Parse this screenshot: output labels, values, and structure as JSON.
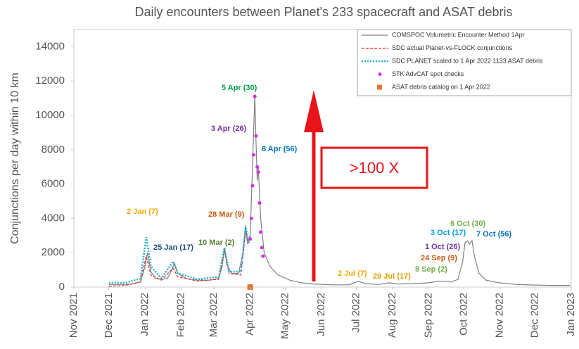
{
  "chart_data": {
    "type": "line",
    "title": "Daily encounters between Planet's 233 spacecraft and ASAT debris",
    "ylabel": "Conjunctions per day within 10 km",
    "xlim": [
      "2021-11-01",
      "2023-01-01"
    ],
    "xticks": [
      {
        "value": "2021-11-01",
        "label": "Nov 2021"
      },
      {
        "value": "2021-12-01",
        "label": "Dec 2021"
      },
      {
        "value": "2022-01-01",
        "label": "Jan 2022"
      },
      {
        "value": "2022-02-01",
        "label": "Feb 2022"
      },
      {
        "value": "2022-03-01",
        "label": "Mar 2022"
      },
      {
        "value": "2022-04-01",
        "label": "Apr 2022"
      },
      {
        "value": "2022-05-01",
        "label": "May 2022"
      },
      {
        "value": "2022-06-01",
        "label": "Jun 2022"
      },
      {
        "value": "2022-07-01",
        "label": "Jul 2022"
      },
      {
        "value": "2022-08-01",
        "label": "Aug 2022"
      },
      {
        "value": "2022-09-01",
        "label": "Sep 2022"
      },
      {
        "value": "2022-10-01",
        "label": "Oct 2022"
      },
      {
        "value": "2022-11-01",
        "label": "Nov 2022"
      },
      {
        "value": "2022-12-01",
        "label": "Dec 2022"
      },
      {
        "value": "2023-01-01",
        "label": "Jan 2023"
      }
    ],
    "ylim": [
      0,
      15000
    ],
    "yticks": [
      0,
      2000,
      4000,
      6000,
      8000,
      10000,
      12000,
      14000
    ],
    "grid": false,
    "legend": "upper right",
    "series": [
      {
        "name": "COMSPOC Volumetric Encounter Method 1Apr",
        "color": "#808080",
        "style": "solid",
        "x": [
          "2021-12-01",
          "2021-12-10",
          "2021-12-20",
          "2021-12-28",
          "2022-01-01",
          "2022-01-03",
          "2022-01-06",
          "2022-01-10",
          "2022-01-15",
          "2022-01-20",
          "2022-01-24",
          "2022-01-26",
          "2022-01-29",
          "2022-02-05",
          "2022-02-15",
          "2022-02-25",
          "2022-03-05",
          "2022-03-08",
          "2022-03-10",
          "2022-03-12",
          "2022-03-16",
          "2022-03-22",
          "2022-03-26",
          "2022-03-28",
          "2022-03-30",
          "2022-04-01",
          "2022-04-03",
          "2022-04-05",
          "2022-04-06",
          "2022-04-07",
          "2022-04-08",
          "2022-04-10",
          "2022-04-13",
          "2022-04-18",
          "2022-04-25",
          "2022-05-05",
          "2022-05-15",
          "2022-05-25",
          "2022-06-10",
          "2022-06-25",
          "2022-07-01",
          "2022-07-03",
          "2022-07-08",
          "2022-07-20",
          "2022-07-29",
          "2022-08-05",
          "2022-08-20",
          "2022-09-01",
          "2022-09-10",
          "2022-09-20",
          "2022-09-26",
          "2022-09-30",
          "2022-10-02",
          "2022-10-04",
          "2022-10-06",
          "2022-10-08",
          "2022-10-10",
          "2022-10-14",
          "2022-10-20",
          "2022-10-31",
          "2022-11-15",
          "2022-12-01",
          "2022-12-15",
          "2022-12-31"
        ],
        "values": [
          150,
          150,
          170,
          300,
          1200,
          2000,
          900,
          500,
          450,
          500,
          1000,
          1400,
          800,
          500,
          400,
          400,
          500,
          1200,
          2300,
          1300,
          800,
          800,
          2000,
          3600,
          2500,
          3000,
          7000,
          11200,
          8500,
          6200,
          7000,
          4000,
          2000,
          1200,
          700,
          400,
          250,
          180,
          130,
          130,
          300,
          350,
          200,
          150,
          250,
          180,
          200,
          250,
          350,
          300,
          450,
          1500,
          2600,
          2700,
          2500,
          2700,
          1800,
          800,
          400,
          250,
          150,
          120,
          100,
          100
        ]
      },
      {
        "name": "SDC actual Planet-vs-FLOCK conjunctions",
        "color": "#e03030",
        "style": "dashed",
        "x": [
          "2021-12-01",
          "2021-12-15",
          "2021-12-28",
          "2022-01-02",
          "2022-01-06",
          "2022-01-15",
          "2022-01-25",
          "2022-01-29",
          "2022-02-15",
          "2022-03-05",
          "2022-03-10",
          "2022-03-14",
          "2022-03-24",
          "2022-03-28",
          "2022-03-30"
        ],
        "values": [
          50,
          100,
          300,
          1800,
          700,
          400,
          1100,
          600,
          350,
          450,
          2100,
          800,
          700,
          3200,
          2500
        ]
      },
      {
        "name": "SDC PLANET scaled to 1 Apr 2022 1133 ASAT debris",
        "color": "#20b0d0",
        "style": "dotted",
        "x": [
          "2021-12-01",
          "2021-12-15",
          "2021-12-28",
          "2022-01-02",
          "2022-01-06",
          "2022-01-15",
          "2022-01-25",
          "2022-01-29",
          "2022-02-15",
          "2022-03-05",
          "2022-03-10",
          "2022-03-14",
          "2022-03-24",
          "2022-03-28",
          "2022-03-31",
          "2022-04-01"
        ],
        "values": [
          250,
          250,
          500,
          2900,
          1200,
          500,
          1500,
          800,
          450,
          600,
          2300,
          900,
          900,
          3500,
          2600,
          3000
        ]
      },
      {
        "name": "STK AdvCAT spot checks",
        "color": "#d030e0",
        "style": "points",
        "x": [
          "2022-04-01",
          "2022-04-02",
          "2022-04-03",
          "2022-04-04",
          "2022-04-05",
          "2022-04-06",
          "2022-04-07",
          "2022-04-08",
          "2022-04-09",
          "2022-04-10",
          "2022-04-11",
          "2022-04-12"
        ],
        "values": [
          2800,
          4000,
          5900,
          7700,
          11100,
          8800,
          7000,
          6700,
          4900,
          3200,
          2300,
          1800
        ]
      },
      {
        "name": "ASAT debris catalog on 1 Apr 2022",
        "color": "#e07830",
        "style": "square",
        "x": [
          "2022-04-01"
        ],
        "values": [
          0
        ]
      }
    ],
    "annotations": [
      {
        "text": "5 Apr (30)",
        "color": "#00a050"
      },
      {
        "text": "3 Apr (26)",
        "color": "#7030a0"
      },
      {
        "text": "8 Apr (56)",
        "color": "#0070c0"
      },
      {
        "text": "2 Jan (7)",
        "color": "#f0a800"
      },
      {
        "text": "25 Jan (17)",
        "color": "#1f4e79"
      },
      {
        "text": "28 Mar (9)",
        "color": "#c55a11"
      },
      {
        "text": "10 Mar (2)",
        "color": "#548235"
      },
      {
        "text": "6 Oct (30)",
        "color": "#70ad47"
      },
      {
        "text": "3 Oct (17)",
        "color": "#00a0e0"
      },
      {
        "text": "7 Oct (56)",
        "color": "#0070c0"
      },
      {
        "text": "1 Oct (26)",
        "color": "#7030a0"
      },
      {
        "text": "24 Sep (9)",
        "color": "#c55a11"
      },
      {
        "text": "8 Sep (2)",
        "color": "#70ad47"
      },
      {
        "text": "2 Jul (7)",
        "color": "#f0a800"
      },
      {
        "text": "29 Jul (17)",
        "color": "#e0a000"
      }
    ],
    "callout": ">100 X"
  }
}
